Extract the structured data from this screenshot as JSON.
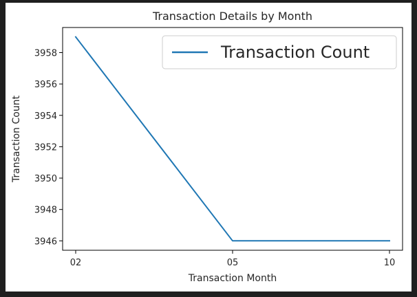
{
  "chart_data": {
    "type": "line",
    "title": "Transaction Details by Month",
    "xlabel": "Transaction Month",
    "ylabel": "Transaction Count",
    "categories": [
      "02",
      "05",
      "10"
    ],
    "series": [
      {
        "name": "Transaction Count",
        "values": [
          3959,
          3946,
          3946
        ],
        "color": "#1f77b4"
      }
    ],
    "ylim": [
      3945.4,
      3959.6
    ],
    "yticks": [
      3946,
      3948,
      3950,
      3952,
      3954,
      3956,
      3958
    ],
    "grid": false,
    "legend_position": "top-right"
  }
}
